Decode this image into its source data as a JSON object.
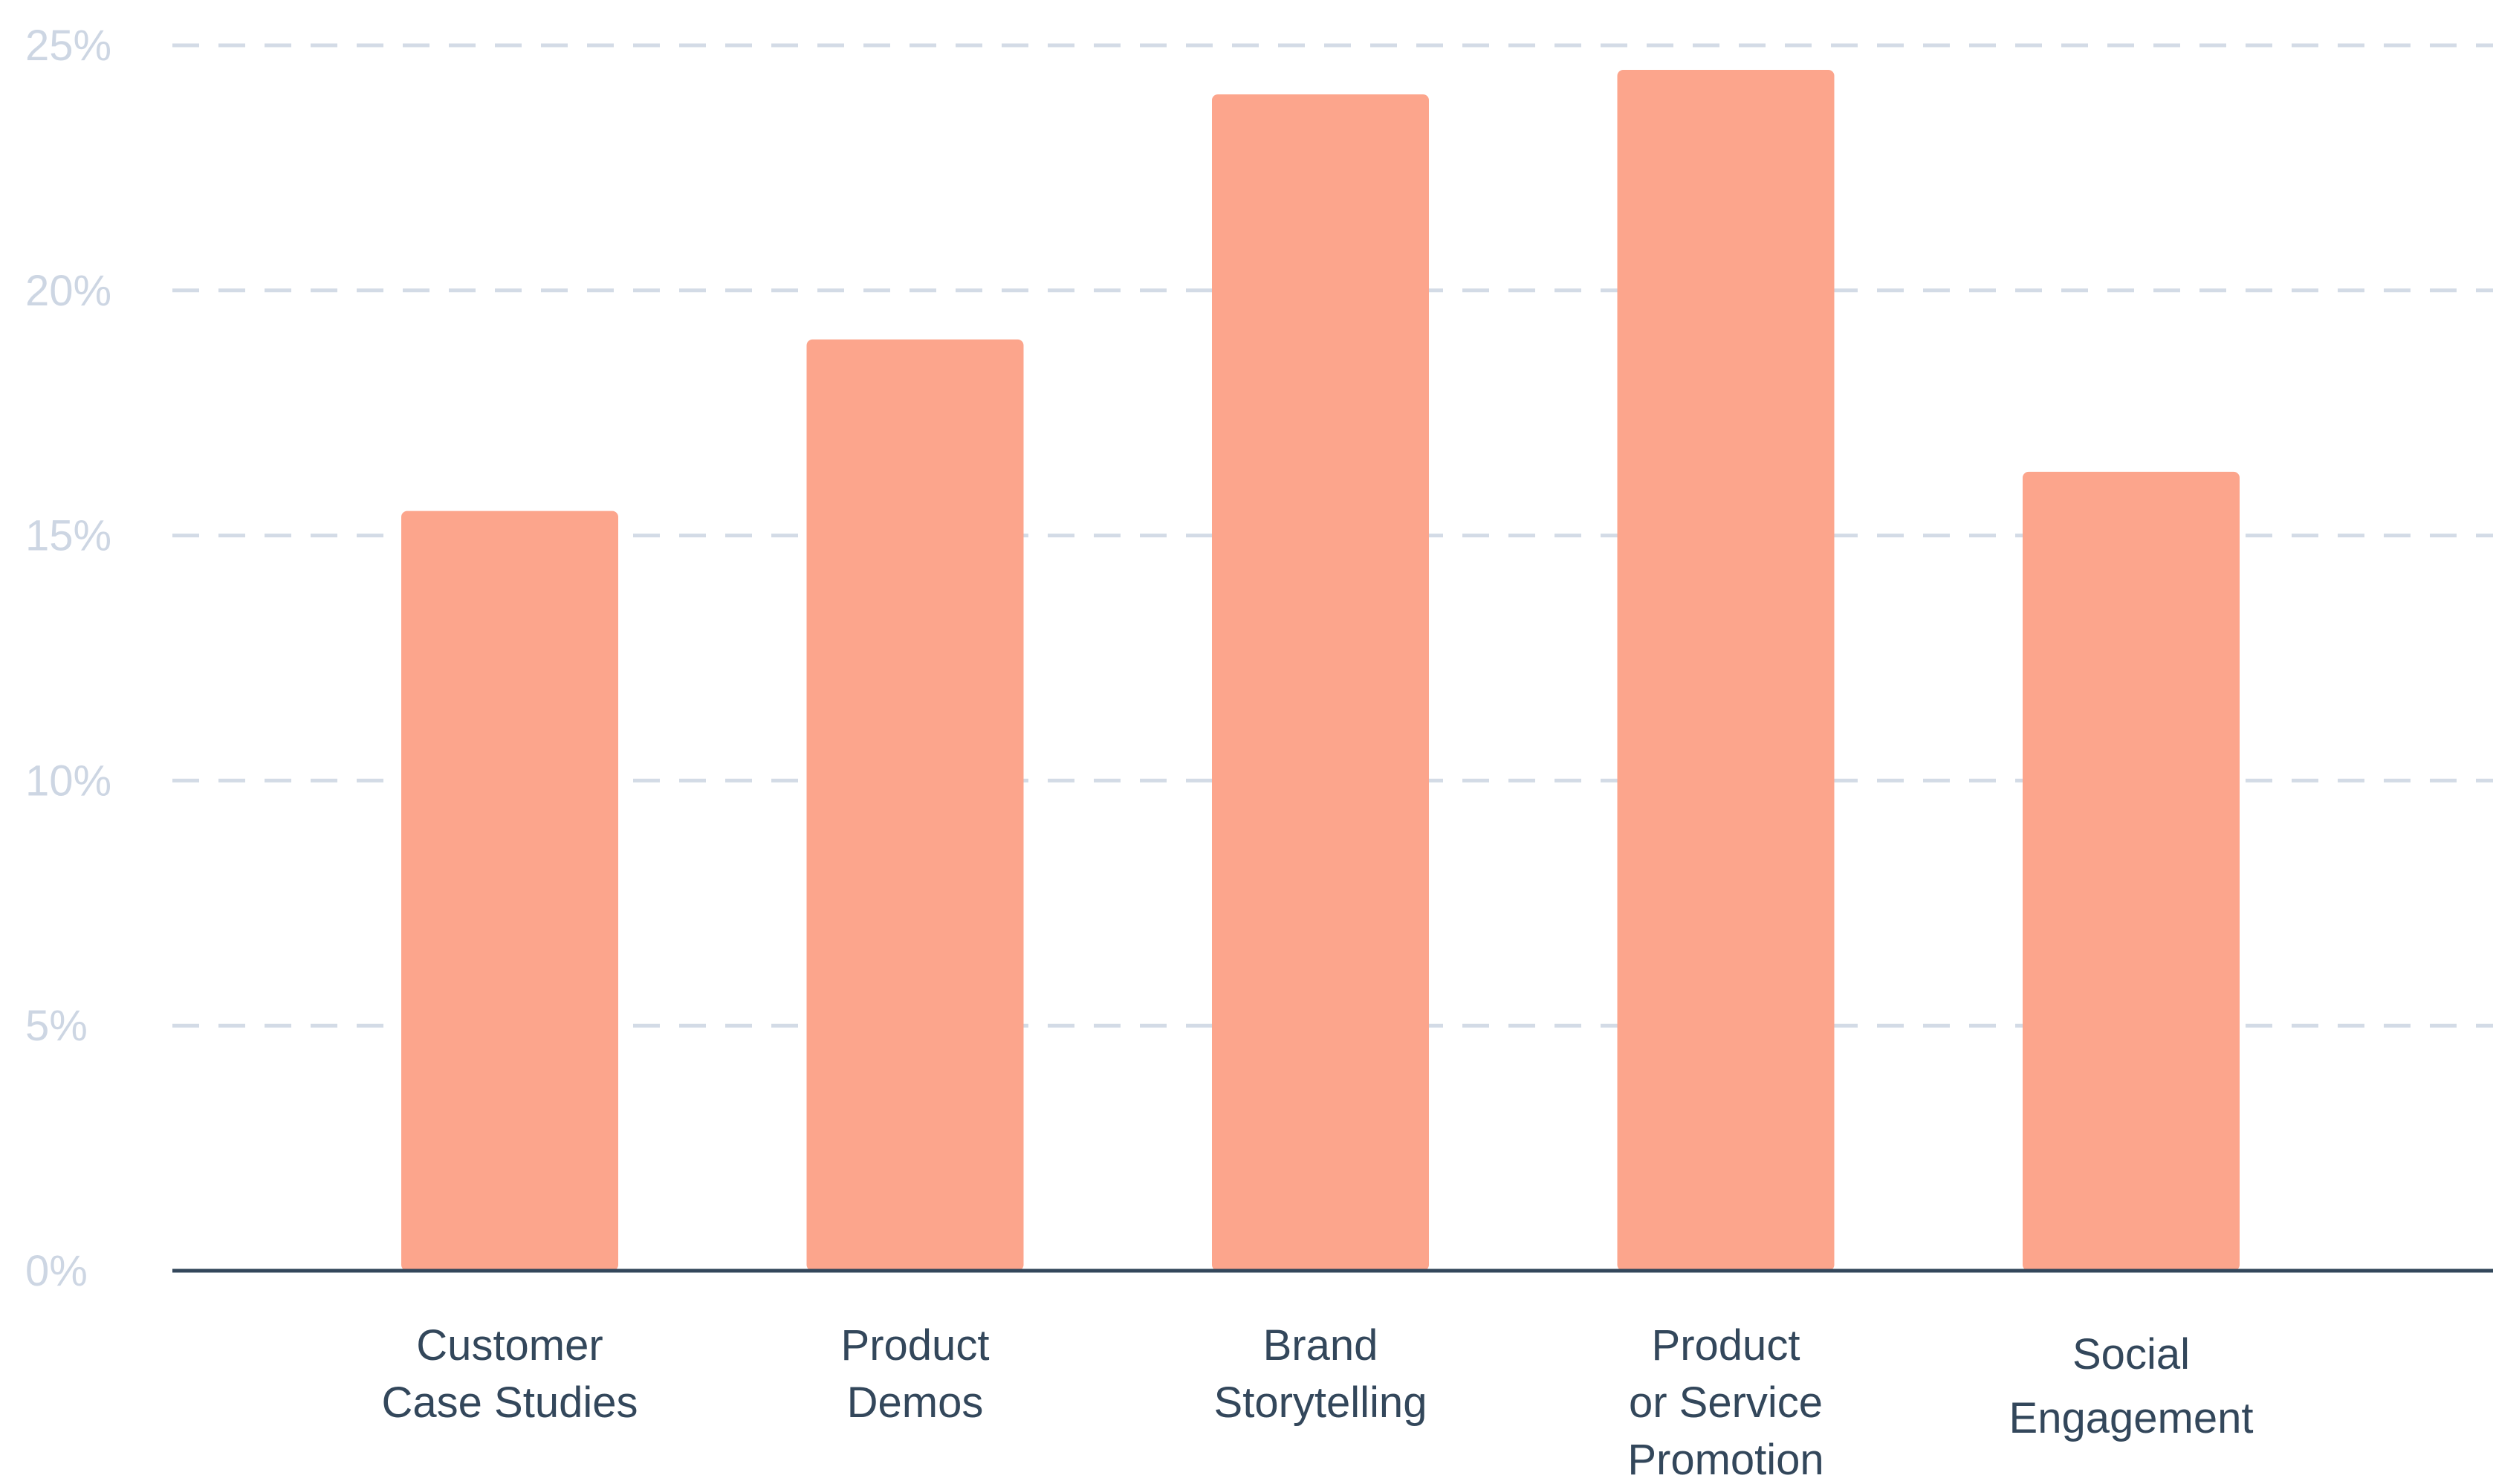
{
  "chart_data": {
    "type": "bar",
    "categories": [
      [
        "Customer",
        "Case Studies"
      ],
      [
        "Product",
        "Demos"
      ],
      [
        "Brand",
        "Storytelling"
      ],
      [
        "Product",
        "or Service",
        "Promotion"
      ],
      [
        "Social",
        "Engagement"
      ]
    ],
    "values": [
      15.5,
      19,
      24,
      24.5,
      16.3
    ],
    "ylim": [
      0,
      25
    ],
    "yticks": [
      0,
      5,
      10,
      15,
      20,
      25
    ],
    "ytick_labels": [
      "0%",
      "5%",
      "10%",
      "15%",
      "20%",
      "25%"
    ],
    "grid": true,
    "colors": {
      "bar": "#fca58c",
      "grid": "#d3dbe6",
      "axis": "#33475b",
      "tick_text": "#cdd6e3",
      "label_text": "#33475b"
    }
  }
}
